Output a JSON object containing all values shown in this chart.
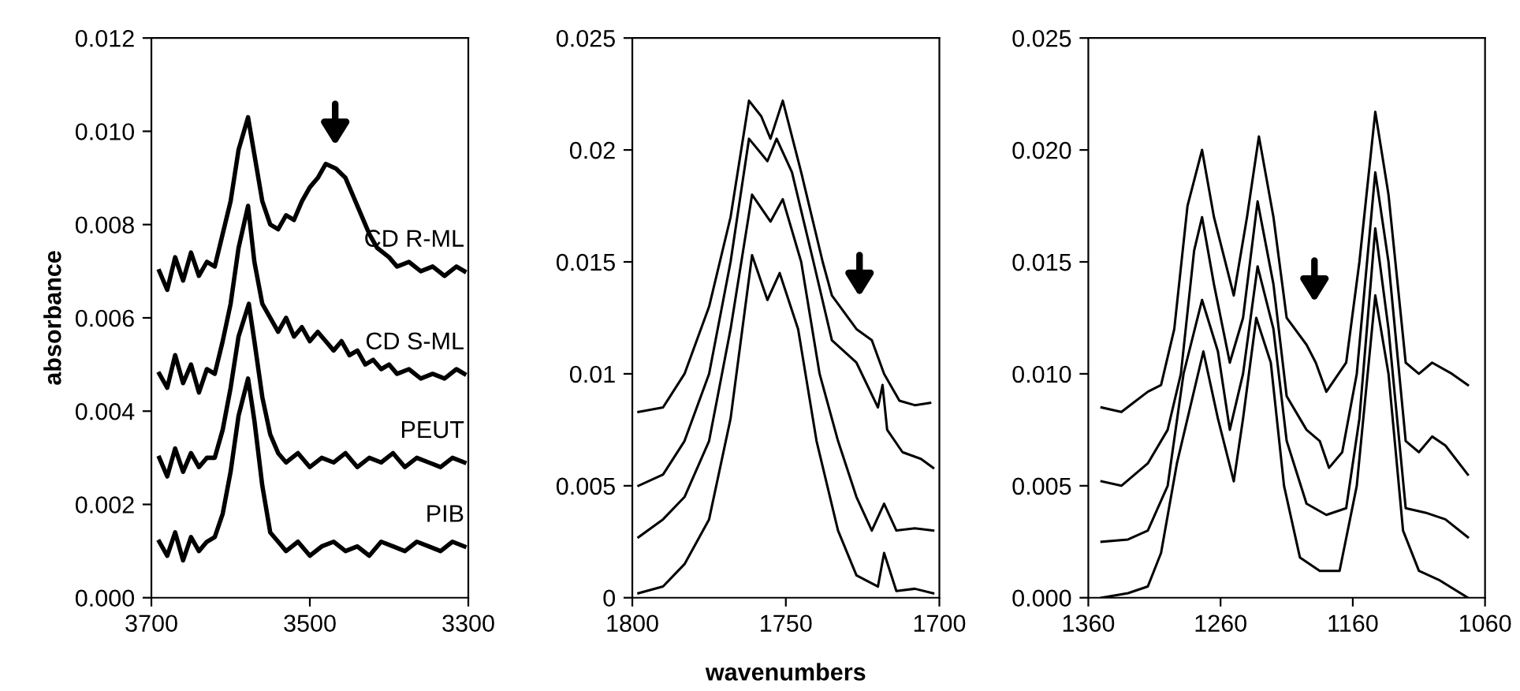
{
  "chart_data": [
    {
      "type": "line",
      "ylabel": "absorbance",
      "xlim": [
        3700,
        3300
      ],
      "ylim": [
        0,
        0.012
      ],
      "xticks": [
        3700,
        3500,
        3300
      ],
      "yticks": [
        {
          "value": 0,
          "label": "0.000"
        },
        {
          "value": 0.002,
          "label": "0.002"
        },
        {
          "value": 0.004,
          "label": "0.004"
        },
        {
          "value": 0.006,
          "label": "0.006"
        },
        {
          "value": 0.008,
          "label": "0.008"
        },
        {
          "value": 0.01,
          "label": "0.010"
        },
        {
          "value": 0.012,
          "label": "0.012"
        }
      ],
      "grid": false,
      "legend": false,
      "series": [
        {
          "name": "CD R-ML",
          "color": "#000000",
          "x": [
            3690,
            3680,
            3670,
            3660,
            3650,
            3640,
            3630,
            3620,
            3610,
            3600,
            3590,
            3578,
            3570,
            3560,
            3550,
            3540,
            3530,
            3520,
            3510,
            3500,
            3490,
            3480,
            3467,
            3455,
            3445,
            3435,
            3425,
            3415,
            3400,
            3390,
            3375,
            3360,
            3345,
            3330,
            3315,
            3305
          ],
          "values": [
            0.007,
            0.0066,
            0.0073,
            0.0068,
            0.0074,
            0.0069,
            0.0072,
            0.0071,
            0.0078,
            0.0085,
            0.0096,
            0.0103,
            0.0095,
            0.0085,
            0.008,
            0.0079,
            0.0082,
            0.0081,
            0.0085,
            0.0088,
            0.009,
            0.0093,
            0.0092,
            0.009,
            0.0086,
            0.0082,
            0.0078,
            0.0075,
            0.0073,
            0.0071,
            0.0072,
            0.007,
            0.0071,
            0.0069,
            0.0071,
            0.007
          ]
        },
        {
          "name": "CD S-ML",
          "color": "#000000",
          "x": [
            3690,
            3680,
            3670,
            3660,
            3650,
            3640,
            3630,
            3620,
            3610,
            3600,
            3590,
            3578,
            3570,
            3560,
            3550,
            3540,
            3530,
            3520,
            3510,
            3500,
            3490,
            3480,
            3470,
            3460,
            3450,
            3440,
            3430,
            3420,
            3410,
            3400,
            3390,
            3375,
            3360,
            3345,
            3330,
            3315,
            3305
          ],
          "values": [
            0.0048,
            0.0045,
            0.0052,
            0.0046,
            0.005,
            0.0044,
            0.0049,
            0.0048,
            0.0055,
            0.0063,
            0.0075,
            0.0084,
            0.0072,
            0.0063,
            0.006,
            0.0057,
            0.006,
            0.0056,
            0.0058,
            0.0055,
            0.0057,
            0.0055,
            0.0053,
            0.0055,
            0.0052,
            0.0053,
            0.005,
            0.0051,
            0.0049,
            0.005,
            0.0048,
            0.0049,
            0.0047,
            0.0048,
            0.0047,
            0.0049,
            0.0048
          ]
        },
        {
          "name": "PEUT",
          "color": "#000000",
          "x": [
            3690,
            3680,
            3670,
            3660,
            3650,
            3640,
            3630,
            3620,
            3610,
            3600,
            3590,
            3577,
            3570,
            3560,
            3550,
            3540,
            3530,
            3515,
            3500,
            3485,
            3470,
            3455,
            3440,
            3425,
            3410,
            3395,
            3380,
            3365,
            3350,
            3335,
            3320,
            3305
          ],
          "values": [
            0.003,
            0.0026,
            0.0032,
            0.0027,
            0.0031,
            0.0028,
            0.003,
            0.003,
            0.0036,
            0.0045,
            0.0056,
            0.0063,
            0.0055,
            0.0043,
            0.0035,
            0.0031,
            0.0029,
            0.0031,
            0.0028,
            0.003,
            0.0029,
            0.0031,
            0.0028,
            0.003,
            0.0029,
            0.0031,
            0.0028,
            0.003,
            0.0029,
            0.0028,
            0.003,
            0.0029
          ]
        },
        {
          "name": "PIB",
          "color": "#000000",
          "x": [
            3690,
            3680,
            3670,
            3660,
            3650,
            3640,
            3630,
            3620,
            3610,
            3600,
            3590,
            3578,
            3570,
            3560,
            3550,
            3540,
            3530,
            3515,
            3500,
            3485,
            3470,
            3455,
            3440,
            3425,
            3410,
            3395,
            3380,
            3365,
            3350,
            3335,
            3320,
            3305
          ],
          "values": [
            0.0012,
            0.0009,
            0.0014,
            0.0008,
            0.0013,
            0.001,
            0.0012,
            0.0013,
            0.0018,
            0.0027,
            0.0039,
            0.0047,
            0.0038,
            0.0024,
            0.0014,
            0.0012,
            0.001,
            0.0012,
            0.0009,
            0.0011,
            0.0012,
            0.001,
            0.0011,
            0.0009,
            0.0012,
            0.0011,
            0.001,
            0.0012,
            0.0011,
            0.001,
            0.0012,
            0.0011
          ]
        }
      ]
    },
    {
      "type": "line",
      "xlabel": "wavenumbers",
      "xlim": [
        1800,
        1700
      ],
      "ylim": [
        0,
        0.025
      ],
      "xticks": [
        1800,
        1750,
        1700
      ],
      "yticks": [
        0,
        0.005,
        0.01,
        0.015,
        0.02,
        0.025
      ],
      "grid": false,
      "legend": false,
      "series": [
        {
          "color": "#000000",
          "x": [
            1798,
            1790,
            1783,
            1775,
            1768,
            1762,
            1758,
            1755,
            1751,
            1745,
            1738,
            1735,
            1727,
            1722,
            1718,
            1713,
            1708,
            1703
          ],
          "values": [
            0.0083,
            0.0085,
            0.01,
            0.013,
            0.017,
            0.0222,
            0.0215,
            0.0205,
            0.0222,
            0.019,
            0.015,
            0.0135,
            0.012,
            0.0115,
            0.01,
            0.0088,
            0.0086,
            0.0087
          ]
        },
        {
          "color": "#000000",
          "x": [
            1798,
            1790,
            1783,
            1775,
            1768,
            1762,
            1756,
            1753,
            1748,
            1741,
            1735,
            1727,
            1720,
            1718.5,
            1717,
            1712,
            1706,
            1702
          ],
          "values": [
            0.005,
            0.0055,
            0.007,
            0.01,
            0.015,
            0.0205,
            0.0195,
            0.0205,
            0.019,
            0.015,
            0.0115,
            0.0105,
            0.0085,
            0.0095,
            0.0075,
            0.0065,
            0.0062,
            0.0058
          ]
        },
        {
          "color": "#000000",
          "x": [
            1798,
            1790,
            1783,
            1775,
            1768,
            1761,
            1755,
            1751,
            1745,
            1739,
            1733,
            1727,
            1722,
            1718,
            1714,
            1708,
            1702
          ],
          "values": [
            0.0027,
            0.0035,
            0.0045,
            0.007,
            0.012,
            0.018,
            0.0168,
            0.0178,
            0.015,
            0.01,
            0.007,
            0.0045,
            0.003,
            0.0042,
            0.003,
            0.0031,
            0.003
          ]
        },
        {
          "color": "#000000",
          "x": [
            1798,
            1790,
            1783,
            1775,
            1768,
            1761,
            1756,
            1752,
            1746,
            1740,
            1733,
            1727,
            1720,
            1718,
            1714,
            1708,
            1702
          ],
          "values": [
            0.0002,
            0.0005,
            0.0015,
            0.0035,
            0.008,
            0.0153,
            0.0133,
            0.0145,
            0.012,
            0.007,
            0.003,
            0.001,
            0.0005,
            0.002,
            0.0003,
            0.0004,
            0.0002
          ]
        }
      ]
    },
    {
      "type": "line",
      "xlim": [
        1360,
        1060
      ],
      "ylim": [
        0,
        0.025
      ],
      "xticks": [
        1360,
        1260,
        1160,
        1060
      ],
      "yticks": [
        {
          "value": 0,
          "label": "0.000"
        },
        {
          "value": 0.005,
          "label": "0.005"
        },
        {
          "value": 0.01,
          "label": "0.010"
        },
        {
          "value": 0.015,
          "label": "0.015"
        },
        {
          "value": 0.02,
          "label": "0.020"
        },
        {
          "value": 0.025,
          "label": "0.025"
        }
      ],
      "grid": false,
      "legend": false,
      "series": [
        {
          "color": "#000000",
          "x": [
            1350,
            1335,
            1315,
            1305,
            1295,
            1285,
            1274,
            1265,
            1250,
            1240,
            1231,
            1220,
            1210,
            1195,
            1188,
            1180,
            1165,
            1155,
            1143,
            1133,
            1120,
            1110,
            1100,
            1085,
            1073
          ],
          "values": [
            0.0085,
            0.0083,
            0.0092,
            0.0095,
            0.012,
            0.0175,
            0.02,
            0.017,
            0.0135,
            0.017,
            0.0206,
            0.017,
            0.0125,
            0.0113,
            0.0105,
            0.0092,
            0.0105,
            0.015,
            0.0217,
            0.018,
            0.0105,
            0.01,
            0.0105,
            0.01,
            0.0095
          ]
        },
        {
          "color": "#000000",
          "x": [
            1350,
            1335,
            1315,
            1300,
            1290,
            1280,
            1274,
            1265,
            1253,
            1243,
            1232,
            1220,
            1210,
            1195,
            1185,
            1178,
            1168,
            1157,
            1143,
            1133,
            1120,
            1110,
            1100,
            1090,
            1073
          ],
          "values": [
            0.0052,
            0.005,
            0.006,
            0.0075,
            0.01,
            0.0155,
            0.017,
            0.014,
            0.0105,
            0.0125,
            0.0177,
            0.014,
            0.009,
            0.0075,
            0.007,
            0.0058,
            0.0065,
            0.01,
            0.019,
            0.015,
            0.007,
            0.0065,
            0.0072,
            0.0068,
            0.0055
          ]
        },
        {
          "color": "#000000",
          "x": [
            1350,
            1330,
            1315,
            1300,
            1288,
            1274,
            1262,
            1253,
            1243,
            1232,
            1220,
            1210,
            1195,
            1180,
            1165,
            1155,
            1143,
            1133,
            1120,
            1105,
            1090,
            1073
          ],
          "values": [
            0.0025,
            0.0026,
            0.003,
            0.005,
            0.01,
            0.0133,
            0.011,
            0.0075,
            0.01,
            0.0148,
            0.012,
            0.007,
            0.0042,
            0.0037,
            0.004,
            0.008,
            0.0165,
            0.012,
            0.004,
            0.0038,
            0.0035,
            0.0027
          ]
        },
        {
          "color": "#000000",
          "x": [
            1350,
            1330,
            1315,
            1305,
            1293,
            1273,
            1262,
            1250,
            1243,
            1233,
            1222,
            1212,
            1200,
            1185,
            1170,
            1157,
            1143,
            1133,
            1122,
            1110,
            1095,
            1073
          ],
          "values": [
            0.0,
            0.0002,
            0.0005,
            0.002,
            0.006,
            0.011,
            0.008,
            0.0052,
            0.008,
            0.0125,
            0.0105,
            0.005,
            0.0018,
            0.0012,
            0.0012,
            0.005,
            0.0135,
            0.01,
            0.003,
            0.0012,
            0.0008,
            0.0
          ]
        }
      ]
    }
  ]
}
